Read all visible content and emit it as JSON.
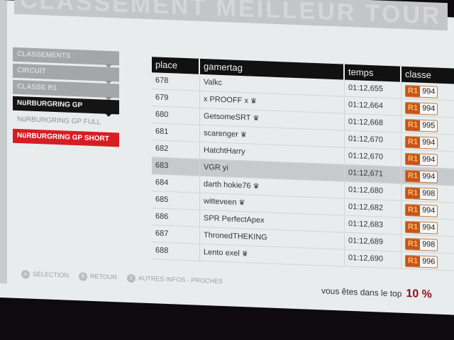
{
  "header": {
    "title": "CLASSEMENT MEILLEUR TOUR"
  },
  "menu": [
    {
      "label": "CLASSEMENTS",
      "state": "parent"
    },
    {
      "label": "CIRCUIT",
      "state": "parent"
    },
    {
      "label": "CLASSE R1",
      "state": "parent"
    },
    {
      "label": "NüRBURGRING GP",
      "state": "active"
    },
    {
      "label": "NüRBURGRING GP FULL",
      "state": "option"
    },
    {
      "label": "NüRBURGRING GP SHORT",
      "state": "selected"
    }
  ],
  "table": {
    "columns": [
      "place",
      "gamertag",
      "temps",
      "classe"
    ],
    "rows": [
      {
        "place": "678",
        "gamertag": "Valkc",
        "crown": false,
        "temps": "01:12,655",
        "class": "R1",
        "pi": "994"
      },
      {
        "place": "679",
        "gamertag": "x PROOFF x",
        "crown": true,
        "temps": "01:12,664",
        "class": "R1",
        "pi": "994"
      },
      {
        "place": "680",
        "gamertag": "GetsomeSRT",
        "crown": true,
        "temps": "01:12,668",
        "class": "R1",
        "pi": "995"
      },
      {
        "place": "681",
        "gamertag": "scarenger",
        "crown": true,
        "temps": "01:12,670",
        "class": "R1",
        "pi": "994"
      },
      {
        "place": "682",
        "gamertag": "HatchtHarry",
        "crown": false,
        "temps": "01:12,670",
        "class": "R1",
        "pi": "994"
      },
      {
        "place": "683",
        "gamertag": "VGR yi",
        "crown": false,
        "temps": "01:12,671",
        "class": "R1",
        "pi": "994",
        "highlighted": true
      },
      {
        "place": "684",
        "gamertag": "darth hokie76",
        "crown": true,
        "temps": "01:12,680",
        "class": "R1",
        "pi": "998"
      },
      {
        "place": "685",
        "gamertag": "witteveen",
        "crown": true,
        "temps": "01:12,682",
        "class": "R1",
        "pi": "994"
      },
      {
        "place": "686",
        "gamertag": "SPR PerfectApex",
        "crown": false,
        "temps": "01:12,683",
        "class": "R1",
        "pi": "994"
      },
      {
        "place": "687",
        "gamertag": "ThronedTHEKING",
        "crown": false,
        "temps": "01:12,689",
        "class": "R1",
        "pi": "998"
      },
      {
        "place": "688",
        "gamertag": "Lento exel",
        "crown": true,
        "temps": "01:12,690",
        "class": "R1",
        "pi": "996"
      }
    ]
  },
  "footer": {
    "buttons": [
      {
        "key": "A",
        "label": "SÉLECTION"
      },
      {
        "key": "B",
        "label": "RETOUR"
      },
      {
        "key": "X",
        "label": "AUTRES INFOS - PROCHES"
      }
    ],
    "top_text": "vous êtes dans le top",
    "top_value": "10 %"
  },
  "colors": {
    "accent_red": "#d71d24",
    "class_badge": "#c8531a",
    "top_value": "#8a1220"
  },
  "icons": {
    "crown": "crown-icon"
  }
}
